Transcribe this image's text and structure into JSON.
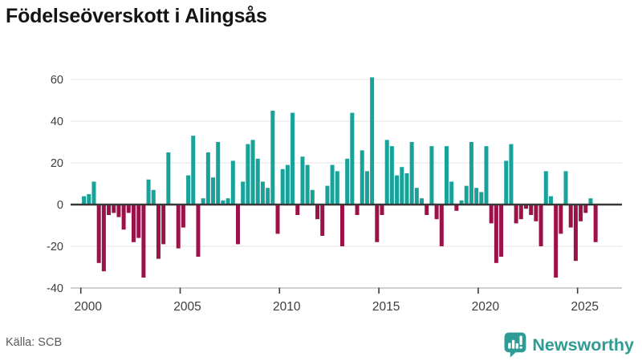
{
  "title": "Födelseöverskott i Alingsås",
  "source": "Källa: SCB",
  "brand": {
    "name": "Newsworthy",
    "color": "#2e9b94"
  },
  "colors": {
    "positive_bar": "#17a29a",
    "negative_bar": "#9c1148",
    "zero_line": "#383838",
    "gridline": "#e3e3e3",
    "axis_line": "#b5b5b5",
    "tick_mark": "#3d3d3d",
    "axis_label": "#3d3d3d"
  },
  "chart_data": {
    "type": "bar",
    "title": "Födelseöverskott i Alingsås",
    "xlabel": "",
    "ylabel": "",
    "frequency": "quarterly",
    "start_year": 2000,
    "ylim": [
      -40,
      62
    ],
    "grid": true,
    "legend": "none",
    "y_ticks": [
      {
        "value": 60,
        "label": "60"
      },
      {
        "value": 40,
        "label": "40"
      },
      {
        "value": 20,
        "label": "20"
      },
      {
        "value": 0,
        "label": "0"
      },
      {
        "value": -20,
        "label": "-20"
      },
      {
        "value": -40,
        "label": "-40"
      }
    ],
    "x_ticks": [
      {
        "year": 2000,
        "label": "2000"
      },
      {
        "year": 2005,
        "label": "2005"
      },
      {
        "year": 2010,
        "label": "2010"
      },
      {
        "year": 2015,
        "label": "2015"
      },
      {
        "year": 2020,
        "label": "2020"
      },
      {
        "year": 2025,
        "label": "2025"
      }
    ],
    "years": [
      {
        "year": 2000,
        "q": [
          4,
          5,
          11,
          -28
        ]
      },
      {
        "year": 2001,
        "q": [
          -32,
          -5,
          -4,
          -6
        ]
      },
      {
        "year": 2002,
        "q": [
          -12,
          -4,
          -18,
          -16
        ]
      },
      {
        "year": 2003,
        "q": [
          -35,
          12,
          7,
          -26
        ]
      },
      {
        "year": 2004,
        "q": [
          -19,
          25,
          0,
          -21
        ]
      },
      {
        "year": 2005,
        "q": [
          -11,
          14,
          33,
          -25
        ]
      },
      {
        "year": 2006,
        "q": [
          3,
          25,
          13,
          30
        ]
      },
      {
        "year": 2007,
        "q": [
          2,
          3,
          21,
          -19
        ]
      },
      {
        "year": 2008,
        "q": [
          11,
          29,
          31,
          22
        ]
      },
      {
        "year": 2009,
        "q": [
          11,
          8,
          45,
          -14
        ]
      },
      {
        "year": 2010,
        "q": [
          17,
          19,
          44,
          -5
        ]
      },
      {
        "year": 2011,
        "q": [
          23,
          19,
          7,
          -7
        ]
      },
      {
        "year": 2012,
        "q": [
          -15,
          9,
          19,
          16
        ]
      },
      {
        "year": 2013,
        "q": [
          -20,
          22,
          44,
          -5
        ]
      },
      {
        "year": 2014,
        "q": [
          26,
          16,
          61,
          -18
        ]
      },
      {
        "year": 2015,
        "q": [
          -5,
          31,
          28,
          14
        ]
      },
      {
        "year": 2016,
        "q": [
          18,
          15,
          30,
          8
        ]
      },
      {
        "year": 2017,
        "q": [
          3,
          -5,
          28,
          -7
        ]
      },
      {
        "year": 2018,
        "q": [
          -20,
          28,
          11,
          -3
        ]
      },
      {
        "year": 2019,
        "q": [
          2,
          9,
          30,
          8
        ]
      },
      {
        "year": 2020,
        "q": [
          6,
          28,
          -9,
          -28
        ]
      },
      {
        "year": 2021,
        "q": [
          -25,
          21,
          29,
          -9
        ]
      },
      {
        "year": 2022,
        "q": [
          -7,
          -2,
          -5,
          -8
        ]
      },
      {
        "year": 2023,
        "q": [
          -20,
          16,
          4,
          -35
        ]
      },
      {
        "year": 2024,
        "q": [
          -14,
          16,
          -11,
          -27
        ]
      },
      {
        "year": 2025,
        "q": [
          -8,
          -4,
          3,
          -18
        ]
      }
    ]
  }
}
